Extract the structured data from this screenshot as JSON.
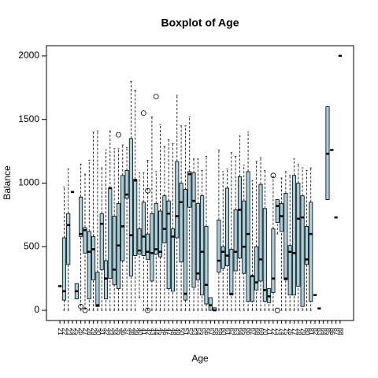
{
  "chart_data": {
    "type": "boxplot",
    "title": "Boxplot of Age",
    "x_label": "Age",
    "y_label": "Balance",
    "categories": [
      "21",
      "22",
      "23",
      "24",
      "25",
      "26",
      "27",
      "28",
      "29",
      "30",
      "31",
      "32",
      "33",
      "34",
      "35",
      "36",
      "37",
      "38",
      "39",
      "40",
      "41",
      "42",
      "43",
      "44",
      "45",
      "46",
      "47",
      "48",
      "49",
      "50",
      "51",
      "52",
      "53",
      "54",
      "55",
      "56",
      "57",
      "58",
      "59",
      "60",
      "61",
      "62",
      "63",
      "64",
      "65",
      "66",
      "67",
      "68",
      "69",
      "70",
      "71",
      "72",
      "73",
      "74",
      "75",
      "76",
      "77",
      "78",
      "79",
      "80",
      "81",
      "82",
      "83",
      "84",
      "85",
      "86",
      "87",
      "88"
    ],
    "stats": [
      [
        190,
        190,
        190,
        190,
        190
      ],
      [
        0,
        80,
        150,
        570,
        970
      ],
      [
        0,
        360,
        670,
        760,
        1110
      ],
      [
        930,
        930,
        930,
        930,
        930
      ],
      [
        90,
        90,
        150,
        210,
        210
      ],
      [
        0,
        580,
        600,
        890,
        1150
      ],
      [
        10,
        450,
        630,
        650,
        1070
      ],
      [
        0,
        90,
        460,
        620,
        1180
      ],
      [
        0,
        240,
        480,
        580,
        1400
      ],
      [
        0,
        30,
        40,
        300,
        1410
      ],
      [
        0,
        320,
        680,
        760,
        1120
      ],
      [
        0,
        90,
        250,
        390,
        1260
      ],
      [
        0,
        250,
        960,
        960,
        1410
      ],
      [
        0,
        200,
        320,
        740,
        1270
      ],
      [
        0,
        170,
        510,
        840,
        1270
      ],
      [
        0,
        390,
        660,
        1060,
        1300
      ],
      [
        0,
        880,
        910,
        1100,
        1280
      ],
      [
        0,
        270,
        590,
        1350,
        1800
      ],
      [
        0,
        430,
        1020,
        1030,
        1730
      ],
      [
        100,
        440,
        470,
        640,
        1080
      ],
      [
        0,
        430,
        580,
        850,
        1080
      ],
      [
        0,
        400,
        460,
        600,
        1180
      ],
      [
        0,
        230,
        450,
        760,
        1520
      ],
      [
        0,
        440,
        480,
        840,
        1090
      ],
      [
        0,
        420,
        460,
        780,
        1460
      ],
      [
        0,
        530,
        640,
        900,
        1290
      ],
      [
        0,
        170,
        760,
        860,
        1340
      ],
      [
        0,
        150,
        580,
        640,
        1310
      ],
      [
        0,
        570,
        740,
        1170,
        1690
      ],
      [
        0,
        380,
        850,
        1000,
        1450
      ],
      [
        0,
        80,
        130,
        950,
        1450
      ],
      [
        0,
        810,
        1070,
        1090,
        1520
      ],
      [
        0,
        180,
        860,
        1080,
        1190
      ],
      [
        0,
        240,
        290,
        840,
        1190
      ],
      [
        0,
        120,
        460,
        900,
        1100
      ],
      [
        0,
        50,
        200,
        660,
        1210
      ],
      [
        0,
        0,
        40,
        100,
        100
      ],
      [
        0,
        0,
        0,
        20,
        20
      ],
      [
        0,
        300,
        390,
        710,
        1260
      ],
      [
        0,
        330,
        460,
        500,
        1090
      ],
      [
        0,
        350,
        430,
        960,
        1110
      ],
      [
        0,
        120,
        130,
        480,
        1240
      ],
      [
        0,
        310,
        460,
        790,
        1210
      ],
      [
        0,
        410,
        790,
        1050,
        1370
      ],
      [
        0,
        290,
        500,
        860,
        1140
      ],
      [
        0,
        70,
        600,
        1090,
        1400
      ],
      [
        0,
        70,
        270,
        270,
        1020
      ],
      [
        0,
        160,
        220,
        500,
        1170
      ],
      [
        0,
        230,
        400,
        990,
        1200
      ],
      [
        0,
        70,
        160,
        800,
        1100
      ],
      [
        0,
        60,
        110,
        170,
        170
      ],
      [
        0,
        140,
        250,
        640,
        1050
      ],
      [
        600,
        690,
        820,
        870,
        870
      ],
      [
        0,
        620,
        740,
        840,
        1040
      ],
      [
        0,
        240,
        250,
        920,
        1090
      ],
      [
        0,
        120,
        460,
        510,
        1060
      ],
      [
        0,
        120,
        450,
        1060,
        1190
      ],
      [
        0,
        190,
        720,
        1000,
        1150
      ],
      [
        0,
        30,
        730,
        900,
        1120
      ],
      [
        0,
        360,
        400,
        660,
        1100
      ],
      [
        0,
        70,
        600,
        850,
        1120
      ],
      [
        120,
        120,
        120,
        120,
        120
      ],
      [
        15,
        15,
        15,
        15,
        15
      ],
      null,
      [
        870,
        870,
        1230,
        1600,
        1600
      ],
      [
        1260,
        1260,
        1260,
        1260,
        1260
      ],
      [
        730,
        730,
        730,
        730,
        730
      ],
      [
        2000,
        2000,
        2000,
        2000,
        2000
      ]
    ],
    "outliers": [
      [],
      [],
      [],
      [],
      [],
      [
        30
      ],
      [
        0
      ],
      [],
      [],
      [],
      [],
      [],
      [],
      [],
      [
        1380
      ],
      [],
      [],
      [],
      [],
      [],
      [
        1550
      ],
      [
        940,
        0
      ],
      [],
      [
        1680
      ],
      [],
      [],
      [],
      [],
      [],
      [],
      [],
      [],
      [],
      [],
      [],
      [],
      [],
      [],
      [],
      [],
      [],
      [],
      [],
      [],
      [],
      [],
      [],
      [],
      [],
      [],
      [],
      [
        1060
      ],
      [
        0
      ],
      [],
      [],
      [],
      [],
      [],
      [],
      [],
      [],
      [],
      [],
      [],
      [],
      [],
      [],
      []
    ],
    "color": "#a8d0dc",
    "ylim": [
      -80,
      2080
    ],
    "yticks": [
      0,
      500,
      1000,
      1500,
      2000
    ]
  }
}
